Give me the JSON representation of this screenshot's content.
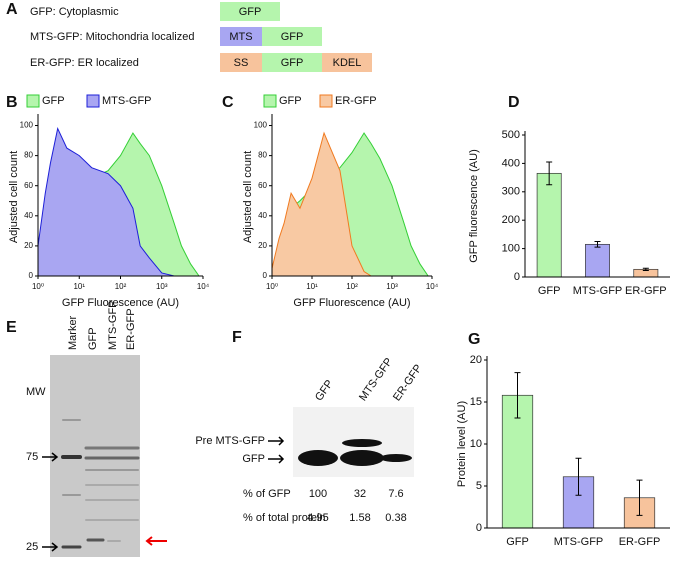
{
  "panel_a": {
    "label": "A",
    "rows": [
      {
        "text": "GFP: Cytoplasmic",
        "segments": [
          {
            "text": "GFP",
            "color": "#b5f5ad"
          }
        ]
      },
      {
        "text": "MTS-GFP: Mitochondria localized",
        "segments": [
          {
            "text": "MTS",
            "color": "#a8a6f2"
          },
          {
            "text": "GFP",
            "color": "#b5f5ad"
          }
        ]
      },
      {
        "text": "ER-GFP: ER localized",
        "segments": [
          {
            "text": "SS",
            "color": "#f7c39c"
          },
          {
            "text": "GFP",
            "color": "#b5f5ad"
          },
          {
            "text": "KDEL",
            "color": "#f7c39c"
          }
        ]
      }
    ]
  },
  "chart_data": [
    {
      "label": "B",
      "type": "area",
      "xscale": "log",
      "xlim": [
        1,
        10000
      ],
      "xticks": [
        {
          "value": 1,
          "label": "10⁰"
        },
        {
          "value": 10,
          "label": "10¹"
        },
        {
          "value": 100,
          "label": "10²"
        },
        {
          "value": 1000,
          "label": "10³"
        },
        {
          "value": 10000,
          "label": "10⁴"
        }
      ],
      "ylim": [
        0,
        105
      ],
      "yticks": [
        0,
        20,
        40,
        60,
        80,
        100
      ],
      "xlabel": "GFP Fluorescence (AU)",
      "ylabel": "Adjusted cell count",
      "series": [
        {
          "name": "GFP",
          "color": "#b5f5ad",
          "edge_color": "#34cf36",
          "x": [
            1,
            1.5,
            2,
            3,
            5,
            10,
            20,
            50,
            100,
            200,
            300,
            500,
            1000,
            2000,
            3000,
            5000,
            8000
          ],
          "values": [
            0,
            10,
            25,
            50,
            55,
            60,
            65,
            70,
            80,
            95,
            88,
            80,
            60,
            35,
            20,
            8,
            0
          ]
        },
        {
          "name": "MTS-GFP",
          "color": "#a9a6f2",
          "edge_color": "#1d1fd8",
          "x": [
            1,
            1.5,
            2,
            3,
            5,
            10,
            20,
            50,
            100,
            200,
            300,
            500,
            1000,
            2000,
            3000,
            5000,
            8000
          ],
          "values": [
            20,
            55,
            75,
            98,
            85,
            80,
            72,
            68,
            60,
            45,
            20,
            12,
            2,
            0,
            0,
            0,
            0
          ]
        }
      ]
    },
    {
      "label": "C",
      "type": "area",
      "xscale": "log",
      "xlim": [
        1,
        10000
      ],
      "xticks": [
        {
          "value": 1,
          "label": "10⁰"
        },
        {
          "value": 10,
          "label": "10¹"
        },
        {
          "value": 100,
          "label": "10²"
        },
        {
          "value": 1000,
          "label": "10³"
        },
        {
          "value": 10000,
          "label": "10⁴"
        }
      ],
      "ylim": [
        0,
        105
      ],
      "yticks": [
        0,
        20,
        40,
        60,
        80,
        100
      ],
      "xlabel": "GFP Fluorescence (AU)",
      "ylabel": "Adjusted cell count",
      "series": [
        {
          "name": "GFP",
          "color": "#b5f5ad",
          "edge_color": "#34cf36",
          "x": [
            1,
            1.5,
            2,
            3,
            5,
            10,
            20,
            50,
            100,
            200,
            300,
            500,
            1000,
            2000,
            3000,
            5000,
            8000
          ],
          "values": [
            0,
            8,
            20,
            45,
            50,
            58,
            65,
            72,
            82,
            95,
            88,
            78,
            60,
            35,
            20,
            8,
            0
          ]
        },
        {
          "name": "ER-GFP",
          "color": "#f8c9a3",
          "edge_color": "#f07a20",
          "x": [
            1,
            1.5,
            2,
            3,
            5,
            10,
            20,
            50,
            100,
            200,
            300,
            500,
            1000,
            2000,
            3000,
            5000,
            8000
          ],
          "values": [
            5,
            25,
            35,
            55,
            45,
            65,
            95,
            70,
            20,
            3,
            0,
            0,
            0,
            0,
            0,
            0,
            0
          ]
        }
      ]
    },
    {
      "label": "D",
      "type": "bar",
      "categories": [
        "GFP",
        "MTS-GFP",
        "ER-GFP"
      ],
      "values": [
        365,
        115,
        27
      ],
      "errors": [
        40,
        10,
        4
      ],
      "colors": [
        "#b5f5ad",
        "#a8a6f2",
        "#f7c39c"
      ],
      "ylim": [
        0,
        500
      ],
      "yticks": [
        0,
        100,
        200,
        300,
        400,
        500
      ],
      "ylabel": "GFP fluorescence (AU)"
    },
    {
      "label": "G",
      "type": "bar",
      "categories": [
        "GFP",
        "MTS-GFP",
        "ER-GFP"
      ],
      "values": [
        15.8,
        6.1,
        3.6
      ],
      "errors": [
        2.7,
        2.2,
        2.1
      ],
      "colors": [
        "#b5f5ad",
        "#a8a6f2",
        "#f7c39c"
      ],
      "ylim": [
        0,
        20
      ],
      "yticks": [
        0,
        5,
        10,
        15,
        20
      ],
      "ylabel": "Protein level (AU)"
    }
  ],
  "panel_e": {
    "label": "E",
    "lanes": [
      "Marker",
      "GFP",
      "MTS-GFP",
      "ER-GFP"
    ],
    "mw_title": "MW",
    "markers": [
      "75",
      "25"
    ]
  },
  "panel_f": {
    "label": "F",
    "lanes": [
      "GFP",
      "MTS-GFP",
      "ER-GFP"
    ],
    "bands": [
      "Pre MTS-GFP",
      "GFP"
    ],
    "rows": [
      {
        "label": "% of GFP",
        "cells": [
          "100",
          "32",
          "7.6"
        ]
      },
      {
        "label": "% of total protein",
        "cells": [
          "4.95",
          "1.58",
          "0.38"
        ]
      }
    ]
  }
}
